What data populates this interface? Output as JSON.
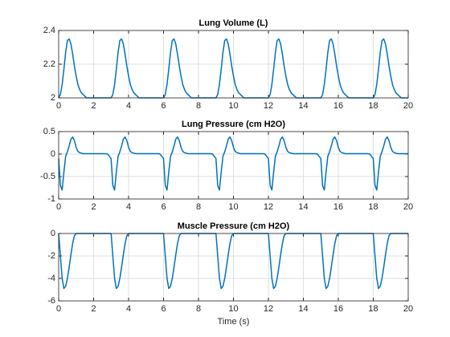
{
  "chart_data": [
    {
      "type": "line",
      "title": "Lung Volume (L)",
      "x": [
        0,
        0.1,
        0.2,
        0.3,
        0.4,
        0.5,
        0.6,
        0.7,
        0.8,
        0.9,
        1,
        1.1,
        1.2,
        1.3,
        1.4,
        1.5,
        1.6,
        1.7,
        1.8,
        1.9,
        2,
        2.1,
        2.2,
        2.3,
        2.4,
        2.5,
        2.6,
        2.7,
        2.8,
        2.9,
        3,
        3.1,
        3.2,
        3.3,
        3.4,
        3.5,
        3.6,
        3.7,
        3.8,
        3.9,
        4,
        4.1,
        4.2,
        4.3,
        4.4,
        4.5,
        4.6,
        4.7,
        4.8,
        4.9,
        5,
        5.1,
        5.2,
        5.3,
        5.4,
        5.5,
        5.6,
        5.7,
        5.8,
        5.9,
        6,
        6.1,
        6.2,
        6.3,
        6.4,
        6.5,
        6.6,
        6.7,
        6.8,
        6.9,
        7,
        7.1,
        7.2,
        7.3,
        7.4,
        7.5,
        7.6,
        7.7,
        7.8,
        7.9,
        8,
        8.1,
        8.2,
        8.3,
        8.4,
        8.5,
        8.6,
        8.7,
        8.8,
        8.9,
        9,
        9.1,
        9.2,
        9.3,
        9.4,
        9.5,
        9.6,
        9.7,
        9.8,
        9.9,
        10,
        10.1,
        10.2,
        10.3,
        10.4,
        10.5,
        10.6,
        10.7,
        10.8,
        10.9,
        11,
        11.1,
        11.2,
        11.3,
        11.4,
        11.5,
        11.6,
        11.7,
        11.8,
        11.9,
        12,
        12.1,
        12.2,
        12.3,
        12.4,
        12.5,
        12.6,
        12.7,
        12.8,
        12.9,
        13,
        13.1,
        13.2,
        13.3,
        13.4,
        13.5,
        13.6,
        13.7,
        13.8,
        13.9,
        14,
        14.1,
        14.2,
        14.3,
        14.4,
        14.5,
        14.6,
        14.7,
        14.8,
        14.9,
        15,
        15.1,
        15.2,
        15.3,
        15.4,
        15.5,
        15.6,
        15.7,
        15.8,
        15.9,
        16,
        16.1,
        16.2,
        16.3,
        16.4,
        16.5,
        16.6,
        16.7,
        16.8,
        16.9,
        17,
        17.1,
        17.2,
        17.3,
        17.4,
        17.5,
        17.6,
        17.7,
        17.8,
        17.9,
        18,
        18.1,
        18.2,
        18.3,
        18.4,
        18.5,
        18.6,
        18.7,
        18.8,
        18.9,
        19,
        19.1,
        19.2,
        19.3,
        19.4,
        19.5,
        19.6,
        19.7,
        19.8,
        19.9,
        20
      ],
      "values": [
        2,
        2.02,
        2.08,
        2.17,
        2.27,
        2.34,
        2.35,
        2.32,
        2.26,
        2.19,
        2.13,
        2.08,
        2.05,
        2.03,
        2.02,
        2.01,
        2,
        2,
        2,
        2,
        2,
        2,
        2,
        2,
        2,
        2,
        2,
        2,
        2,
        2,
        2,
        2.02,
        2.08,
        2.17,
        2.27,
        2.34,
        2.35,
        2.32,
        2.26,
        2.19,
        2.13,
        2.08,
        2.05,
        2.03,
        2.02,
        2.01,
        2,
        2,
        2,
        2,
        2,
        2,
        2,
        2,
        2,
        2,
        2,
        2,
        2,
        2,
        2,
        2.02,
        2.08,
        2.17,
        2.27,
        2.34,
        2.35,
        2.32,
        2.26,
        2.19,
        2.13,
        2.08,
        2.05,
        2.03,
        2.02,
        2.01,
        2,
        2,
        2,
        2,
        2,
        2,
        2,
        2,
        2,
        2,
        2,
        2,
        2,
        2,
        2,
        2.02,
        2.08,
        2.17,
        2.27,
        2.34,
        2.35,
        2.32,
        2.26,
        2.19,
        2.13,
        2.08,
        2.05,
        2.03,
        2.02,
        2.01,
        2,
        2,
        2,
        2,
        2,
        2,
        2,
        2,
        2,
        2,
        2,
        2,
        2,
        2,
        2,
        2.02,
        2.08,
        2.17,
        2.27,
        2.34,
        2.35,
        2.32,
        2.26,
        2.19,
        2.13,
        2.08,
        2.05,
        2.03,
        2.02,
        2.01,
        2,
        2,
        2,
        2,
        2,
        2,
        2,
        2,
        2,
        2,
        2,
        2,
        2,
        2,
        2,
        2.02,
        2.08,
        2.17,
        2.27,
        2.34,
        2.35,
        2.32,
        2.26,
        2.19,
        2.13,
        2.08,
        2.05,
        2.03,
        2.02,
        2.01,
        2,
        2,
        2,
        2,
        2,
        2,
        2,
        2,
        2,
        2,
        2,
        2,
        2,
        2,
        2,
        2.02,
        2.08,
        2.17,
        2.27,
        2.34,
        2.35,
        2.32,
        2.26,
        2.19,
        2.13,
        2.08,
        2.05,
        2.03,
        2.02,
        2.01,
        2,
        2,
        2,
        2,
        2
      ],
      "color": "#0072bd",
      "xlim": [
        0,
        20
      ],
      "xticks": [
        0,
        2,
        4,
        6,
        8,
        10,
        12,
        14,
        16,
        18,
        20
      ],
      "ylim": [
        2,
        2.4
      ],
      "yticks": [
        2,
        2.2,
        2.4
      ],
      "grid": true
    },
    {
      "type": "line",
      "title": "Lung Pressure (cm H2O)",
      "x": [
        0,
        0.1,
        0.2,
        0.3,
        0.4,
        0.5,
        0.6,
        0.7,
        0.8,
        0.9,
        1,
        1.1,
        1.2,
        1.3,
        1.4,
        1.5,
        1.6,
        1.7,
        1.8,
        1.9,
        2,
        2.1,
        2.2,
        2.3,
        2.4,
        2.5,
        2.6,
        2.7,
        2.8,
        2.9,
        3,
        3.1,
        3.2,
        3.3,
        3.4,
        3.5,
        3.6,
        3.7,
        3.8,
        3.9,
        4,
        4.1,
        4.2,
        4.3,
        4.4,
        4.5,
        4.6,
        4.7,
        4.8,
        4.9,
        5,
        5.1,
        5.2,
        5.3,
        5.4,
        5.5,
        5.6,
        5.7,
        5.8,
        5.9,
        6,
        6.1,
        6.2,
        6.3,
        6.4,
        6.5,
        6.6,
        6.7,
        6.8,
        6.9,
        7,
        7.1,
        7.2,
        7.3,
        7.4,
        7.5,
        7.6,
        7.7,
        7.8,
        7.9,
        8,
        8.1,
        8.2,
        8.3,
        8.4,
        8.5,
        8.6,
        8.7,
        8.8,
        8.9,
        9,
        9.1,
        9.2,
        9.3,
        9.4,
        9.5,
        9.6,
        9.7,
        9.8,
        9.9,
        10,
        10.1,
        10.2,
        10.3,
        10.4,
        10.5,
        10.6,
        10.7,
        10.8,
        10.9,
        11,
        11.1,
        11.2,
        11.3,
        11.4,
        11.5,
        11.6,
        11.7,
        11.8,
        11.9,
        12,
        12.1,
        12.2,
        12.3,
        12.4,
        12.5,
        12.6,
        12.7,
        12.8,
        12.9,
        13,
        13.1,
        13.2,
        13.3,
        13.4,
        13.5,
        13.6,
        13.7,
        13.8,
        13.9,
        14,
        14.1,
        14.2,
        14.3,
        14.4,
        14.5,
        14.6,
        14.7,
        14.8,
        14.9,
        15,
        15.1,
        15.2,
        15.3,
        15.4,
        15.5,
        15.6,
        15.7,
        15.8,
        15.9,
        16,
        16.1,
        16.2,
        16.3,
        16.4,
        16.5,
        16.6,
        16.7,
        16.8,
        16.9,
        17,
        17.1,
        17.2,
        17.3,
        17.4,
        17.5,
        17.6,
        17.7,
        17.8,
        17.9,
        18,
        18.1,
        18.2,
        18.3,
        18.4,
        18.5,
        18.6,
        18.7,
        18.8,
        18.9,
        19,
        19.1,
        19.2,
        19.3,
        19.4,
        19.5,
        19.6,
        19.7,
        19.8,
        19.9,
        20
      ],
      "values": [
        -0.1,
        -0.7,
        -0.8,
        -0.4,
        -0.05,
        0.05,
        0.18,
        0.33,
        0.38,
        0.3,
        0.15,
        0.06,
        0.03,
        0.02,
        0.01,
        0.01,
        0.01,
        0.01,
        0.01,
        0.01,
        0.01,
        0.01,
        0.01,
        0.01,
        0.01,
        0.01,
        0.01,
        0.01,
        0,
        -0.05,
        -0.1,
        -0.7,
        -0.8,
        -0.4,
        -0.05,
        0.05,
        0.18,
        0.33,
        0.38,
        0.3,
        0.15,
        0.06,
        0.03,
        0.02,
        0.01,
        0.01,
        0.01,
        0.01,
        0.01,
        0.01,
        0.01,
        0.01,
        0.01,
        0.01,
        0.01,
        0.01,
        0.01,
        0.01,
        0,
        -0.05,
        -0.1,
        -0.7,
        -0.8,
        -0.4,
        -0.05,
        0.05,
        0.18,
        0.33,
        0.38,
        0.3,
        0.15,
        0.06,
        0.03,
        0.02,
        0.01,
        0.01,
        0.01,
        0.01,
        0.01,
        0.01,
        0.01,
        0.01,
        0.01,
        0.01,
        0.01,
        0.01,
        0.01,
        0.01,
        0,
        -0.05,
        -0.1,
        -0.7,
        -0.8,
        -0.4,
        -0.05,
        0.05,
        0.18,
        0.33,
        0.38,
        0.3,
        0.15,
        0.06,
        0.03,
        0.02,
        0.01,
        0.01,
        0.01,
        0.01,
        0.01,
        0.01,
        0.01,
        0.01,
        0.01,
        0.01,
        0.01,
        0.01,
        0.01,
        0.01,
        0,
        -0.05,
        -0.1,
        -0.7,
        -0.8,
        -0.4,
        -0.05,
        0.05,
        0.18,
        0.33,
        0.38,
        0.3,
        0.15,
        0.06,
        0.03,
        0.02,
        0.01,
        0.01,
        0.01,
        0.01,
        0.01,
        0.01,
        0.01,
        0.01,
        0.01,
        0.01,
        0.01,
        0.01,
        0.01,
        0.01,
        0,
        -0.05,
        -0.1,
        -0.7,
        -0.8,
        -0.4,
        -0.05,
        0.05,
        0.18,
        0.33,
        0.38,
        0.3,
        0.15,
        0.06,
        0.03,
        0.02,
        0.01,
        0.01,
        0.01,
        0.01,
        0.01,
        0.01,
        0.01,
        0.01,
        0.01,
        0.01,
        0.01,
        0.01,
        0.01,
        0.01,
        0,
        -0.05,
        -0.1,
        -0.7,
        -0.8,
        -0.4,
        -0.05,
        0.05,
        0.18,
        0.33,
        0.38,
        0.3,
        0.15,
        0.06,
        0.03,
        0.02,
        0.01,
        0.01,
        0.01,
        0.01,
        0.01,
        0.01,
        0.01
      ],
      "color": "#0072bd",
      "xlim": [
        0,
        20
      ],
      "xticks": [
        0,
        2,
        4,
        6,
        8,
        10,
        12,
        14,
        16,
        18,
        20
      ],
      "ylim": [
        -1,
        0.5
      ],
      "yticks": [
        -1,
        -0.5,
        0,
        0.5
      ],
      "grid": true
    },
    {
      "type": "line",
      "title": "Muscle Pressure (cm H2O)",
      "xlabel": "Time (s)",
      "x": [
        0,
        0.1,
        0.2,
        0.3,
        0.4,
        0.5,
        0.6,
        0.7,
        0.8,
        0.9,
        1,
        1.1,
        1.2,
        1.3,
        1.4,
        1.5,
        1.6,
        1.7,
        1.8,
        1.9,
        2,
        2.1,
        2.2,
        2.3,
        2.4,
        2.5,
        2.6,
        2.7,
        2.8,
        2.9,
        3,
        3.1,
        3.2,
        3.3,
        3.4,
        3.5,
        3.6,
        3.7,
        3.8,
        3.9,
        4,
        4.1,
        4.2,
        4.3,
        4.4,
        4.5,
        4.6,
        4.7,
        4.8,
        4.9,
        5,
        5.1,
        5.2,
        5.3,
        5.4,
        5.5,
        5.6,
        5.7,
        5.8,
        5.9,
        6,
        6.1,
        6.2,
        6.3,
        6.4,
        6.5,
        6.6,
        6.7,
        6.8,
        6.9,
        7,
        7.1,
        7.2,
        7.3,
        7.4,
        7.5,
        7.6,
        7.7,
        7.8,
        7.9,
        8,
        8.1,
        8.2,
        8.3,
        8.4,
        8.5,
        8.6,
        8.7,
        8.8,
        8.9,
        9,
        9.1,
        9.2,
        9.3,
        9.4,
        9.5,
        9.6,
        9.7,
        9.8,
        9.9,
        10,
        10.1,
        10.2,
        10.3,
        10.4,
        10.5,
        10.6,
        10.7,
        10.8,
        10.9,
        11,
        11.1,
        11.2,
        11.3,
        11.4,
        11.5,
        11.6,
        11.7,
        11.8,
        11.9,
        12,
        12.1,
        12.2,
        12.3,
        12.4,
        12.5,
        12.6,
        12.7,
        12.8,
        12.9,
        13,
        13.1,
        13.2,
        13.3,
        13.4,
        13.5,
        13.6,
        13.7,
        13.8,
        13.9,
        14,
        14.1,
        14.2,
        14.3,
        14.4,
        14.5,
        14.6,
        14.7,
        14.8,
        14.9,
        15,
        15.1,
        15.2,
        15.3,
        15.4,
        15.5,
        15.6,
        15.7,
        15.8,
        15.9,
        16,
        16.1,
        16.2,
        16.3,
        16.4,
        16.5,
        16.6,
        16.7,
        16.8,
        16.9,
        17,
        17.1,
        17.2,
        17.3,
        17.4,
        17.5,
        17.6,
        17.7,
        17.8,
        17.9,
        18,
        18.1,
        18.2,
        18.3,
        18.4,
        18.5,
        18.6,
        18.7,
        18.8,
        18.9,
        19,
        19.1,
        19.2,
        19.3,
        19.4,
        19.5,
        19.6,
        19.7,
        19.8,
        19.9,
        20
      ],
      "values": [
        0,
        -2,
        -4,
        -4.9,
        -4.7,
        -4,
        -3,
        -1.9,
        -0.9,
        -0.2,
        0,
        0,
        0,
        0,
        0,
        0,
        0,
        0,
        0,
        0,
        0,
        0,
        0,
        0,
        0,
        0,
        0,
        0,
        0,
        0,
        0,
        -2,
        -4,
        -4.9,
        -4.7,
        -4,
        -3,
        -1.9,
        -0.9,
        -0.2,
        0,
        0,
        0,
        0,
        0,
        0,
        0,
        0,
        0,
        0,
        0,
        0,
        0,
        0,
        0,
        0,
        0,
        0,
        0,
        0,
        0,
        -2,
        -4,
        -4.9,
        -4.7,
        -4,
        -3,
        -1.9,
        -0.9,
        -0.2,
        0,
        0,
        0,
        0,
        0,
        0,
        0,
        0,
        0,
        0,
        0,
        0,
        0,
        0,
        0,
        0,
        0,
        0,
        0,
        0,
        0,
        -2,
        -4,
        -4.9,
        -4.7,
        -4,
        -3,
        -1.9,
        -0.9,
        -0.2,
        0,
        0,
        0,
        0,
        0,
        0,
        0,
        0,
        0,
        0,
        0,
        0,
        0,
        0,
        0,
        0,
        0,
        0,
        0,
        0,
        0,
        -2,
        -4,
        -4.9,
        -4.7,
        -4,
        -3,
        -1.9,
        -0.9,
        -0.2,
        0,
        0,
        0,
        0,
        0,
        0,
        0,
        0,
        0,
        0,
        0,
        0,
        0,
        0,
        0,
        0,
        0,
        0,
        0,
        0,
        0,
        -2,
        -4,
        -4.9,
        -4.7,
        -4,
        -3,
        -1.9,
        -0.9,
        -0.2,
        0,
        0,
        0,
        0,
        0,
        0,
        0,
        0,
        0,
        0,
        0,
        0,
        0,
        0,
        0,
        0,
        0,
        0,
        0,
        0,
        0,
        -2,
        -4,
        -4.9,
        -4.7,
        -4,
        -3,
        -1.9,
        -0.9,
        -0.2,
        0,
        0,
        0,
        0,
        0,
        0,
        0,
        0,
        0,
        0,
        0
      ],
      "color": "#0072bd",
      "xlim": [
        0,
        20
      ],
      "xticks": [
        0,
        2,
        4,
        6,
        8,
        10,
        12,
        14,
        16,
        18,
        20
      ],
      "ylim": [
        -6,
        0
      ],
      "yticks": [
        -6,
        -4,
        -2,
        0
      ],
      "grid": true
    }
  ]
}
